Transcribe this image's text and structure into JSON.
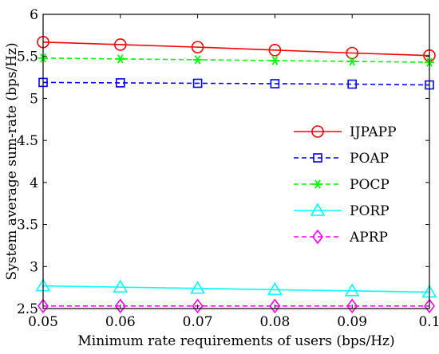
{
  "chart_data": {
    "type": "line",
    "xlabel": "Minimum rate requirements of users (bps/Hz)",
    "ylabel": "System average sum-rate (bps/Hz)",
    "xlim": [
      0.05,
      0.1
    ],
    "ylim": [
      2.5,
      6
    ],
    "x_ticks": [
      "0.05",
      "0.06",
      "0.07",
      "0.08",
      "0.09",
      "0.1"
    ],
    "y_ticks": [
      "2.5",
      "3",
      "3.5",
      "4",
      "4.5",
      "5",
      "5.5",
      "6"
    ],
    "grid": false,
    "legend_position": "right",
    "x": [
      0.05,
      0.06,
      0.07,
      0.08,
      0.09,
      0.1
    ],
    "series": [
      {
        "name": "IJPAPP",
        "color": "#ff0000",
        "marker": "circle",
        "dash": "solid",
        "values": [
          5.67,
          5.64,
          5.61,
          5.575,
          5.54,
          5.51
        ]
      },
      {
        "name": "POAP",
        "color": "#0000ff",
        "marker": "square",
        "dash": "dashed",
        "values": [
          5.19,
          5.185,
          5.18,
          5.175,
          5.17,
          5.16
        ]
      },
      {
        "name": "POCP",
        "color": "#00ff00",
        "marker": "asterisk",
        "dash": "dashed",
        "values": [
          5.48,
          5.47,
          5.46,
          5.45,
          5.44,
          5.43
        ]
      },
      {
        "name": "PORP",
        "color": "#00ffff",
        "marker": "triangle",
        "dash": "solid",
        "values": [
          2.77,
          2.755,
          2.74,
          2.725,
          2.71,
          2.695
        ]
      },
      {
        "name": "APRP",
        "color": "#ff00ff",
        "marker": "diamond",
        "dash": "dashed",
        "values": [
          2.53,
          2.53,
          2.53,
          2.53,
          2.53,
          2.53
        ]
      }
    ]
  }
}
